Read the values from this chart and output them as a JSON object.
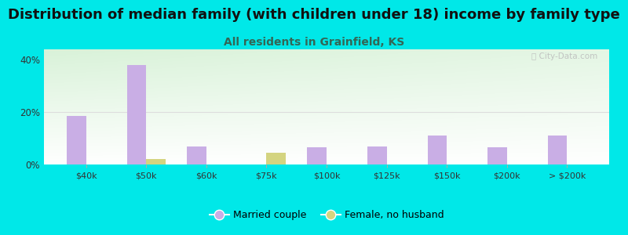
{
  "title": "Distribution of median family (with children under 18) income by family type",
  "subtitle": "All residents in Grainfield, KS",
  "categories": [
    "$40k",
    "$50k",
    "$60k",
    "$75k",
    "$100k",
    "$125k",
    "$150k",
    "$200k",
    "> $200k"
  ],
  "married_couple": [
    18.5,
    38.0,
    7.0,
    0.0,
    6.5,
    7.0,
    11.0,
    6.5,
    11.0
  ],
  "female_no_husband": [
    0.0,
    2.0,
    0.0,
    4.5,
    0.0,
    0.0,
    0.0,
    0.0,
    0.0
  ],
  "married_color": "#c9aee5",
  "female_color": "#d4d480",
  "background_outer": "#00e8e8",
  "title_fontsize": 13,
  "subtitle_fontsize": 10,
  "subtitle_color": "#336655",
  "ylim": [
    0,
    44
  ],
  "yticks": [
    0,
    20,
    40
  ],
  "ytick_labels": [
    "0%",
    "20%",
    "40%"
  ],
  "bar_width": 0.32,
  "watermark": "ⓘ City-Data.com",
  "hline_color": "#dddddd",
  "hline_y": 20
}
